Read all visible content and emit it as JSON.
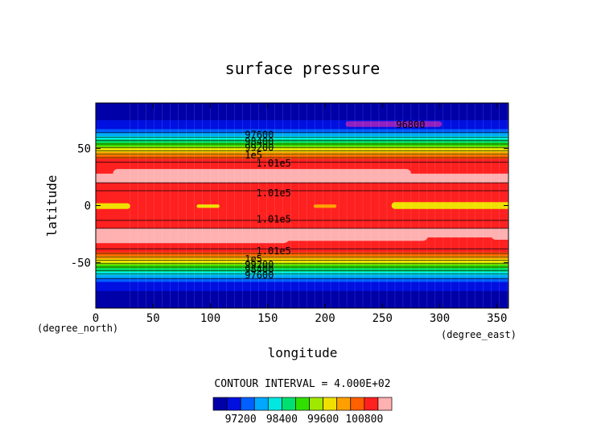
{
  "chart_data": {
    "type": "heatmap",
    "title": "surface pressure",
    "xlabel": "longitude",
    "ylabel": "latitude",
    "x_unit_label": "(degree_east)",
    "y_unit_label": "(degree_north)",
    "xlim": [
      0,
      360
    ],
    "ylim": [
      -90,
      90
    ],
    "x_ticks": [
      "0",
      "50",
      "100",
      "150",
      "200",
      "250",
      "300",
      "350"
    ],
    "y_ticks": [
      "50",
      "0",
      "-50"
    ],
    "contour_interval_text": "CONTOUR INTERVAL = 4.000E+02",
    "colorbar": {
      "levels": [
        96800,
        97200,
        97600,
        98000,
        98400,
        98800,
        99200,
        99600,
        100000,
        100400,
        100800,
        101200
      ],
      "colors": [
        "#0000a8",
        "#0010e0",
        "#0060ff",
        "#00a8ff",
        "#00e8e0",
        "#00e070",
        "#30e000",
        "#a0e800",
        "#f0e000",
        "#ffa000",
        "#ff6000",
        "#ff2020",
        "#ffb0b0"
      ],
      "tick_labels": [
        "97200",
        "98400",
        "99600",
        "100800"
      ]
    },
    "contour_labels": [
      {
        "text": "97600",
        "lon": 130,
        "lat": 62
      },
      {
        "text": "98400",
        "lon": 130,
        "lat": 56
      },
      {
        "text": "99200",
        "lon": 130,
        "lat": 51
      },
      {
        "text": "1e5",
        "lon": 130,
        "lat": 44
      },
      {
        "text": "1.01e5",
        "lon": 140,
        "lat": 37
      },
      {
        "text": "1.01e5",
        "lon": 140,
        "lat": 11
      },
      {
        "text": "1.01e5",
        "lon": 140,
        "lat": -12
      },
      {
        "text": "1.01e5",
        "lon": 140,
        "lat": -40
      },
      {
        "text": "1e5",
        "lon": 130,
        "lat": -47
      },
      {
        "text": "99200",
        "lon": 130,
        "lat": -52
      },
      {
        "text": "98400",
        "lon": 130,
        "lat": -56
      },
      {
        "text": "97600",
        "lon": 130,
        "lat": -61
      },
      {
        "text": "96800",
        "lon": 262,
        "lat": 71
      }
    ]
  }
}
